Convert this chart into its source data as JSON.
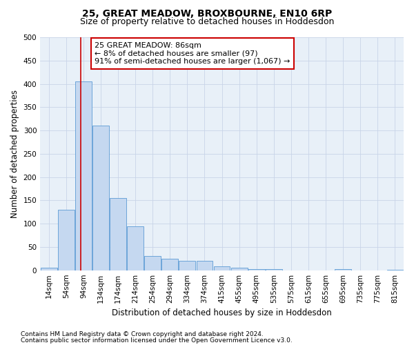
{
  "title": "25, GREAT MEADOW, BROXBOURNE, EN10 6RP",
  "subtitle": "Size of property relative to detached houses in Hoddesdon",
  "xlabel": "Distribution of detached houses by size in Hoddesdon",
  "ylabel": "Number of detached properties",
  "bar_labels": [
    "14sqm",
    "54sqm",
    "94sqm",
    "134sqm",
    "174sqm",
    "214sqm",
    "254sqm",
    "294sqm",
    "334sqm",
    "374sqm",
    "415sqm",
    "455sqm",
    "495sqm",
    "535sqm",
    "575sqm",
    "615sqm",
    "655sqm",
    "695sqm",
    "735sqm",
    "775sqm",
    "815sqm"
  ],
  "bar_values": [
    5,
    130,
    405,
    310,
    155,
    95,
    30,
    25,
    20,
    20,
    8,
    5,
    3,
    2,
    0,
    0,
    0,
    3,
    0,
    0,
    1
  ],
  "bar_color": "#c5d8f0",
  "bar_edge_color": "#5b9bd5",
  "vline_x": 1.85,
  "vline_color": "#cc0000",
  "annotation_text": "25 GREAT MEADOW: 86sqm\n← 8% of detached houses are smaller (97)\n91% of semi-detached houses are larger (1,067) →",
  "annotation_box_color": "#ffffff",
  "annotation_box_edge": "#cc0000",
  "ylim": [
    0,
    500
  ],
  "yticks": [
    0,
    50,
    100,
    150,
    200,
    250,
    300,
    350,
    400,
    450,
    500
  ],
  "footnote1": "Contains HM Land Registry data © Crown copyright and database right 2024.",
  "footnote2": "Contains public sector information licensed under the Open Government Licence v3.0.",
  "bg_color": "#ffffff",
  "plot_bg_color": "#e8f0f8",
  "grid_color": "#c8d4e8",
  "title_fontsize": 10,
  "subtitle_fontsize": 9,
  "axis_label_fontsize": 8.5,
  "tick_fontsize": 7.5,
  "annotation_fontsize": 8,
  "footnote_fontsize": 6.5
}
